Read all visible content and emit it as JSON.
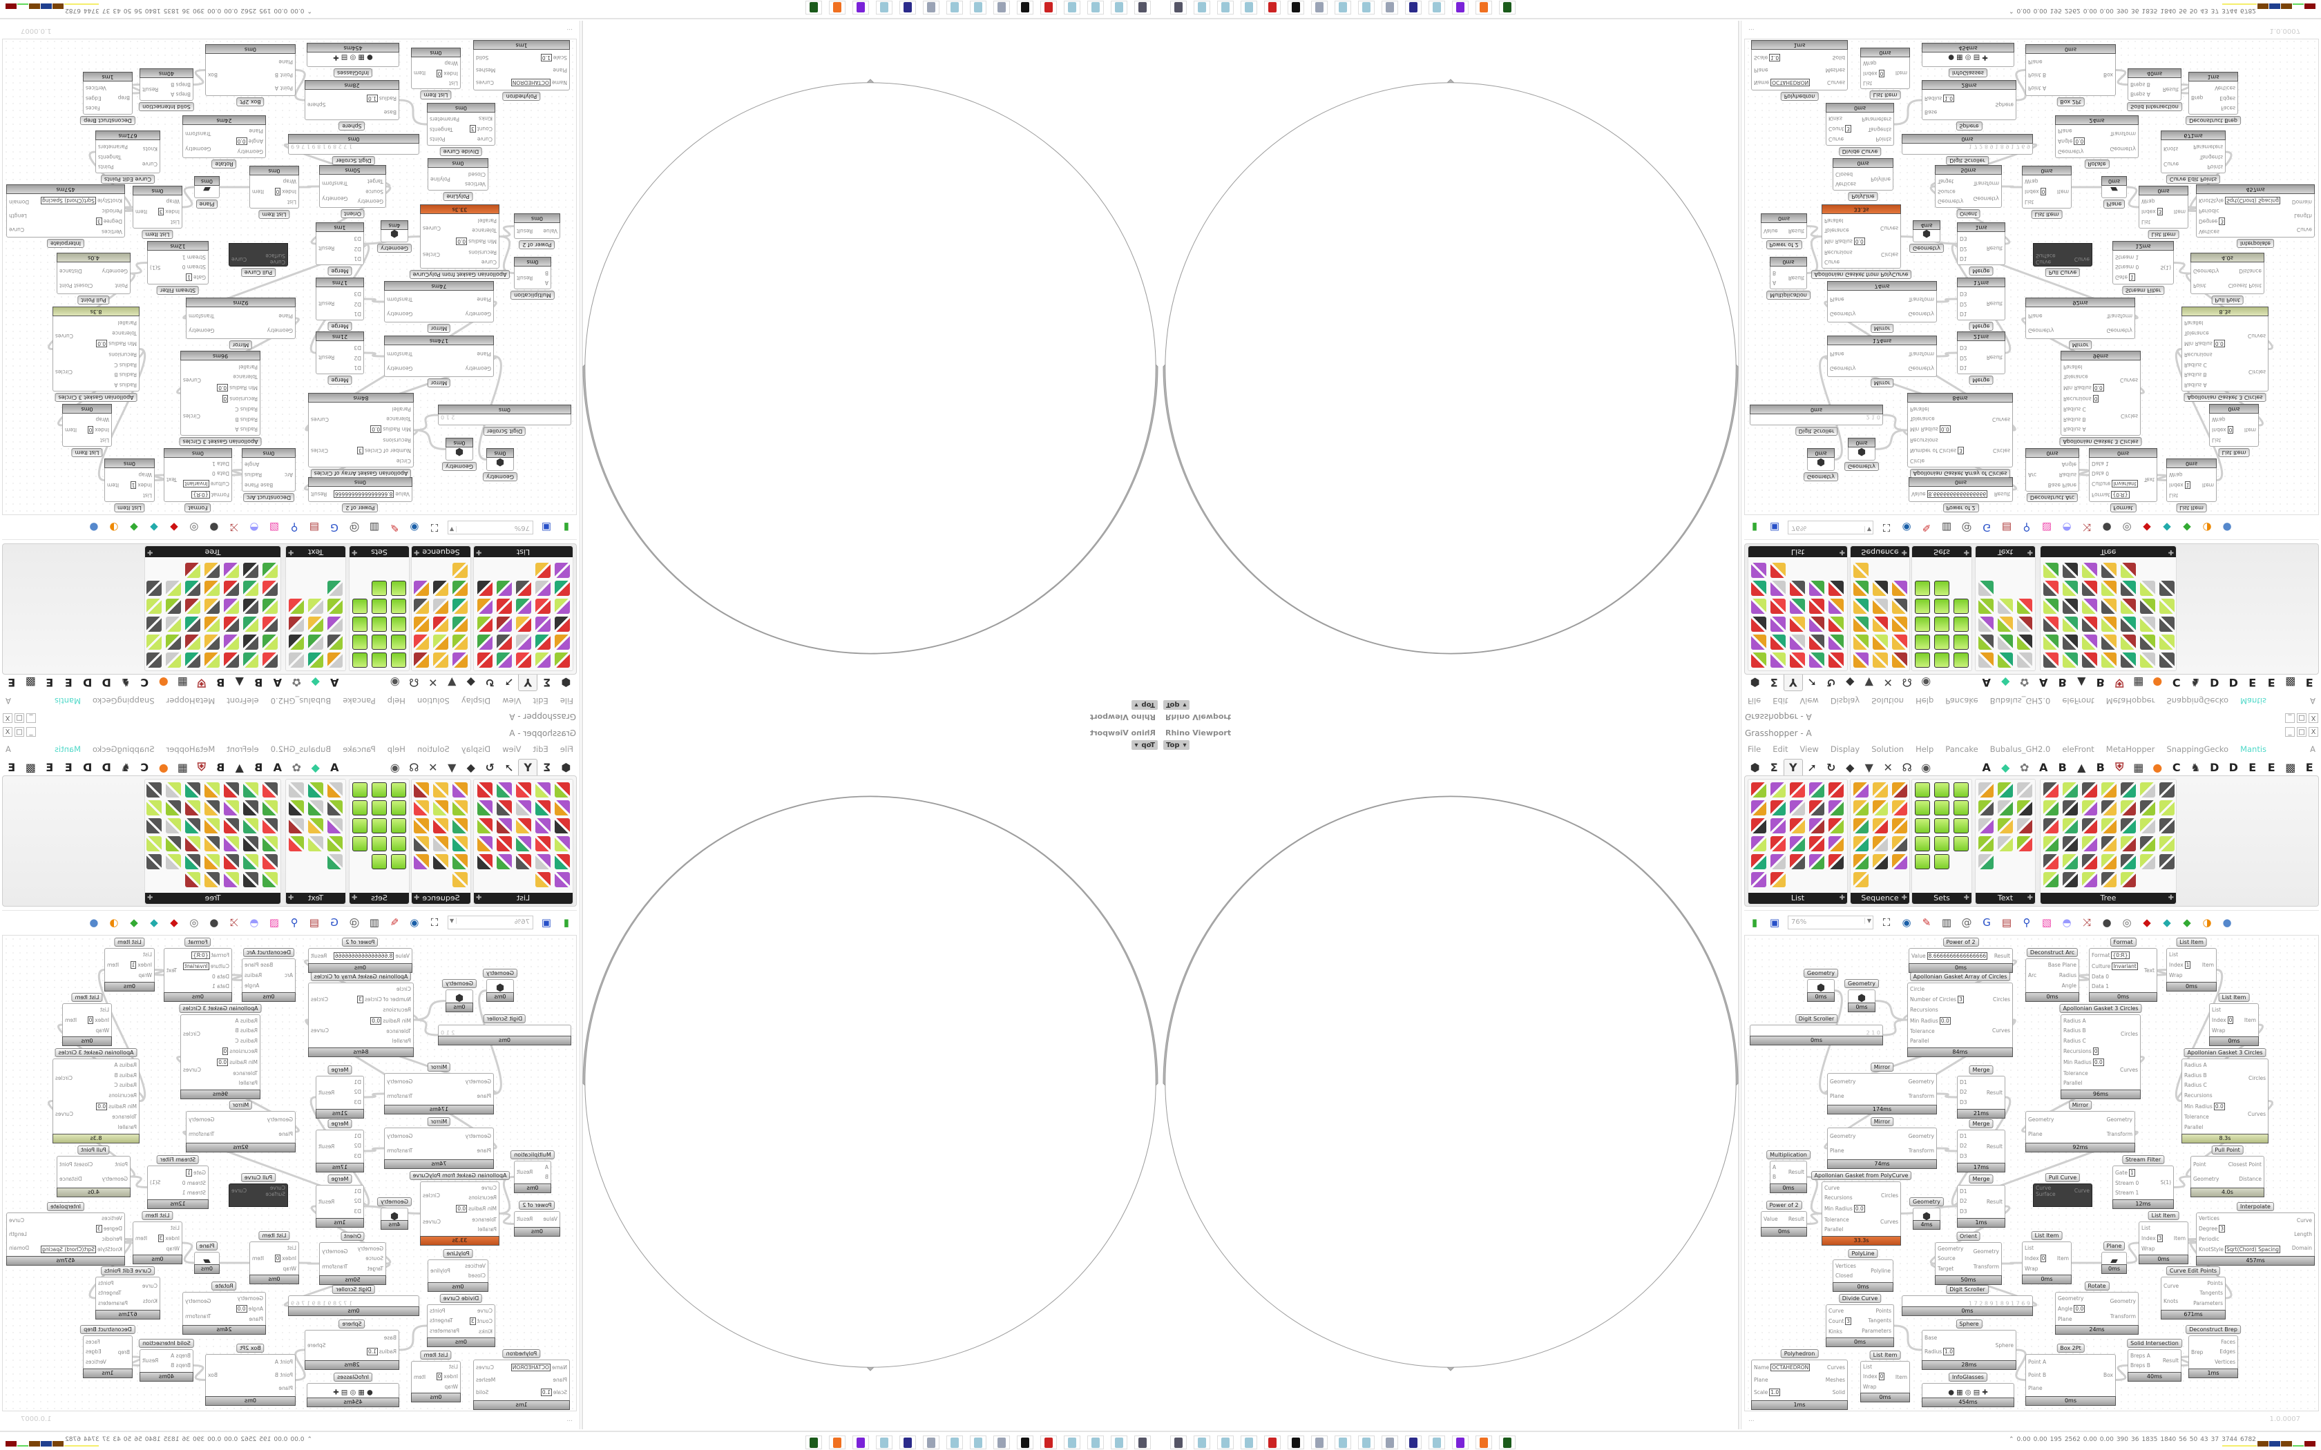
{
  "viewport": {
    "label": "Rhino Viewport",
    "view": "Top",
    "view_dropdown_icon": "chevron-down-icon",
    "stroke_color": "#9a9a9a"
  },
  "window": {
    "title": "Grasshopper - A",
    "controls": [
      "_",
      "□",
      "X"
    ]
  },
  "menu": {
    "items": [
      "File",
      "Edit",
      "View",
      "Display",
      "Solution",
      "Help",
      "Pancake",
      "Bubalus_GH2.0",
      "eleFront",
      "MetaHopper",
      "SnappingGecko",
      "Mantis"
    ],
    "active_plugin": "Mantis",
    "active_color": "#4fd8c8",
    "right_label": "A"
  },
  "tabs": [
    {
      "icon": "params-hexagon-icon"
    },
    {
      "icon": "maths-sigma-icon"
    },
    {
      "icon": "sets-tree-icon",
      "selected": true
    },
    {
      "icon": "vector-arrow-icon"
    },
    {
      "icon": "curve-icon"
    },
    {
      "icon": "surface-icon"
    },
    {
      "icon": "mesh-icon"
    },
    {
      "icon": "intersect-icon"
    },
    {
      "icon": "transform-icon"
    },
    {
      "icon": "display-eye-icon"
    },
    {
      "label": "A"
    },
    {
      "icon": "crystal-icon"
    },
    {
      "icon": "puzzle-icon"
    },
    {
      "label": "A"
    },
    {
      "label": "B"
    },
    {
      "icon": "mountain-icon"
    },
    {
      "label": "B"
    },
    {
      "icon": "shield-icon"
    },
    {
      "icon": "grid-icon"
    },
    {
      "icon": "orange-circle-icon"
    },
    {
      "label": "C"
    },
    {
      "icon": "rooster-icon"
    },
    {
      "label": "D"
    },
    {
      "label": "D"
    },
    {
      "label": "E"
    },
    {
      "label": "E"
    },
    {
      "icon": "checker-icon"
    },
    {
      "label": "E"
    }
  ],
  "ribbon": {
    "groups": [
      {
        "label": "List",
        "count": 27
      },
      {
        "label": "Sequence",
        "count": 16
      },
      {
        "label": "Sets",
        "count": 14
      },
      {
        "label": "Text",
        "count": 13
      },
      {
        "label": "Tree",
        "count": 40
      }
    ]
  },
  "canvas_toolbar": {
    "zoom": "76%",
    "icons": [
      "new-document-icon",
      "save-icon",
      "zoom-extents-icon",
      "preview-eye-icon",
      "sketch-pen-icon",
      "cluster-icon",
      "email-icon",
      "gha-icon",
      "document-icon",
      "search-icon",
      "package-icon",
      "lightbulb-icon",
      "wires-icon",
      "blob-icon",
      "tube-icon",
      "red-gem-icon",
      "teal-shape-icon",
      "green-shape-icon",
      "sphere-icon",
      "blue-sphere-icon"
    ]
  },
  "canvas": {
    "footer": "...",
    "version": "1.0.0007",
    "nodes": [
      {
        "title": "Power of 2",
        "in": [
          [
            "Value",
            "8.6666666666666666"
          ]
        ],
        "out": [
          "Result"
        ],
        "time": "0ms"
      },
      {
        "title": "Geometry",
        "in": [],
        "out": [],
        "time": "0ms",
        "glyph": "⬢"
      },
      {
        "title": "Geometry",
        "in": [],
        "out": [],
        "time": "0ms",
        "glyph": "⬢"
      },
      {
        "title": "Digit Scroller",
        "in": [],
        "out": [],
        "time": "0ms",
        "slider": "2 1 0"
      },
      {
        "title": "Apollonian Gasket Array of Circles",
        "in": [
          "Circle",
          [
            "Number of Circles",
            "3"
          ],
          "Recursions",
          [
            "Min Radius",
            "0.0"
          ],
          "Tolerance",
          "Parallel"
        ],
        "out": [
          "Circles",
          "Curves"
        ],
        "time": "84ms"
      },
      {
        "title": "Deconstruct Arc",
        "in": [
          "Arc"
        ],
        "out": [
          "Base Plane",
          "Radius",
          "Angle"
        ],
        "time": "0ms"
      },
      {
        "title": "Format",
        "in": [
          [
            "Format",
            "{0:R}"
          ],
          [
            "Culture",
            "Invariant"
          ],
          "Data 0",
          "Data 1"
        ],
        "out": [
          "Text"
        ],
        "time": "0ms"
      },
      {
        "title": "List Item",
        "in": [
          "List",
          [
            "Index",
            "1"
          ],
          "Wrap"
        ],
        "out": [
          "Item"
        ],
        "time": "0ms"
      },
      {
        "title": "List Item",
        "in": [
          "List",
          [
            "Index",
            "0"
          ],
          "Wrap"
        ],
        "out": [
          "Item"
        ],
        "time": "0ms"
      },
      {
        "title": "Apollonian Gasket 3 Circles",
        "in": [
          "Radius A",
          "Radius B",
          "Radius C",
          [
            "Recursions",
            "0"
          ],
          [
            "Min Radius",
            "0.0"
          ],
          "Tolerance",
          "Parallel"
        ],
        "out": [
          "Circles",
          "Curves"
        ],
        "time": "96ms"
      },
      {
        "title": "Apollonian Gasket 3 Circles",
        "in": [
          "Radius A",
          "Radius B",
          "Radius C",
          "Recursions",
          [
            "Min Radius",
            "0.0"
          ],
          "Tolerance",
          "Parallel"
        ],
        "out": [
          "Circles",
          "Curves"
        ],
        "time": "8.3s",
        "state": "warn"
      },
      {
        "title": "Mirror",
        "in": [
          "Geometry",
          "Plane"
        ],
        "out": [
          "Geometry",
          "Transform"
        ],
        "time": "174ms"
      },
      {
        "title": "Merge",
        "in": [
          "D1",
          "D2",
          "D3"
        ],
        "out": [
          "Result"
        ],
        "time": "21ms"
      },
      {
        "title": "Mirror",
        "in": [
          "Geometry",
          "Plane"
        ],
        "out": [
          "Geometry",
          "Transform"
        ],
        "time": "74ms"
      },
      {
        "title": "Merge",
        "in": [
          "D1",
          "D2",
          "D3"
        ],
        "out": [
          "Result"
        ],
        "time": "17ms"
      },
      {
        "title": "Mirror",
        "in": [
          "Geometry",
          "Plane"
        ],
        "out": [
          "Geometry",
          "Transform"
        ],
        "time": "92ms"
      },
      {
        "title": "Multiplication",
        "in": [
          "A",
          "B"
        ],
        "out": [
          "Result"
        ],
        "time": "0ms"
      },
      {
        "title": "Pull Point",
        "in": [
          "Point",
          "Geometry"
        ],
        "out": [
          "Closest Point",
          "Distance"
        ],
        "time": "4.0s",
        "state": "gray"
      },
      {
        "title": "Stream Filter",
        "in": [
          [
            "Gate",
            "1"
          ],
          "Stream 0",
          "Stream 1"
        ],
        "out": [
          "S(1)"
        ],
        "time": "12ms"
      },
      {
        "title": "Apollonian Gasket from PolyCurve",
        "in": [
          "Curve",
          "Recursions",
          [
            "Min Radius",
            "0.0"
          ],
          "Tolerance",
          "Parallel"
        ],
        "out": [
          "Circles",
          "Curves"
        ],
        "time": "33.3s",
        "state": "err"
      },
      {
        "title": "Power of 2",
        "in": [
          "Value"
        ],
        "out": [
          "Result"
        ],
        "time": "0ms"
      },
      {
        "title": "Geometry",
        "in": [],
        "out": [],
        "time": "4ms",
        "glyph": "⬢"
      },
      {
        "title": "Merge",
        "in": [
          "D1",
          "D2",
          "D3"
        ],
        "out": [
          "Result"
        ],
        "time": "1ms"
      },
      {
        "title": "Pull Curve",
        "in": [
          "Curve",
          "Surface"
        ],
        "out": [
          "Curve"
        ],
        "time": "",
        "state": "dark"
      },
      {
        "title": "Orient",
        "in": [
          "Geometry",
          "Source",
          "Target"
        ],
        "out": [
          "Geometry",
          "Transform"
        ],
        "time": "50ms"
      },
      {
        "title": "List Item",
        "in": [
          "List",
          [
            "Index",
            "0"
          ],
          "Wrap"
        ],
        "out": [
          "Item"
        ],
        "time": "0ms"
      },
      {
        "title": "Plane",
        "in": [],
        "out": [],
        "time": "0ms",
        "glyph": "▰"
      },
      {
        "title": "List Item",
        "in": [
          "List",
          [
            "Index",
            "3"
          ],
          "Wrap"
        ],
        "out": [
          "Item"
        ],
        "time": "0ms"
      },
      {
        "title": "Interpolate",
        "in": [
          "Vertices",
          [
            "Degree",
            "3"
          ],
          "Periodic",
          [
            "KnotStyle",
            "Sqrt(Chord) Spacing"
          ]
        ],
        "out": [
          "Curve",
          "Length",
          "Domain"
        ],
        "time": "457ms"
      },
      {
        "title": "PolyLine",
        "in": [
          "Vertices",
          "Closed"
        ],
        "out": [
          "Polyline"
        ],
        "time": "0ms"
      },
      {
        "title": "Digit Scroller",
        "in": [],
        "out": [],
        "time": "0ms",
        "slider": "1 7 2 8 9 1 8 9 1 7 6 9"
      },
      {
        "title": "Rotate",
        "in": [
          "Geometry",
          [
            "Angle",
            "0.0"
          ],
          "Plane"
        ],
        "out": [
          "Geometry",
          "Transform"
        ],
        "time": "24ms"
      },
      {
        "title": "Curve Edit Points",
        "in": [
          "Curve",
          "Knots"
        ],
        "out": [
          "Points",
          "Tangents",
          "Parameters"
        ],
        "time": "671ms"
      },
      {
        "title": "Divide Curve",
        "in": [
          "Curve",
          [
            "Count",
            "3"
          ],
          "Kinks"
        ],
        "out": [
          "Points",
          "Tangents",
          "Parameters"
        ],
        "time": "0ms"
      },
      {
        "title": "Sphere",
        "in": [
          "Base",
          [
            "Radius",
            "1.0"
          ]
        ],
        "out": [
          "Sphere"
        ],
        "time": "28ms"
      },
      {
        "title": "Polyhedron",
        "in": [
          [
            "Name",
            "OCTAHEDRON"
          ],
          "Plane",
          [
            "Scale",
            "1.0"
          ]
        ],
        "out": [
          "Curves",
          "Meshes",
          "Solid"
        ],
        "time": "1ms"
      },
      {
        "title": "List Item",
        "in": [
          "List",
          [
            "Index",
            "0"
          ],
          "Wrap"
        ],
        "out": [
          "Item"
        ],
        "time": "0ms"
      },
      {
        "title": "InfoGlasses",
        "in": [],
        "out": [],
        "time": "454ms",
        "glyph": "● ▦ ◎ ▤ ✚"
      },
      {
        "title": "Box 2Pt",
        "in": [
          "Point A",
          "Point B",
          "Plane"
        ],
        "out": [
          "Box"
        ],
        "time": "0ms"
      },
      {
        "title": "Solid Intersection",
        "in": [
          "Breps A",
          "Breps B"
        ],
        "out": [
          "Result"
        ],
        "time": "40ms"
      },
      {
        "title": "Deconstruct Brep",
        "in": [
          "Brep"
        ],
        "out": [
          "Faces",
          "Edges",
          "Vertices"
        ],
        "time": "1ms"
      }
    ]
  },
  "taskbar": {
    "icons": [
      "rhino-icon",
      "notepad-icon",
      "notepad-icon",
      "notepad-icon",
      "red-app-icon",
      "wolf-icon",
      "scroll-icon",
      "notepad-icon",
      "notepad-icon",
      "scroll-icon",
      "floppy-icon",
      "notepad-icon",
      "purple-app-icon",
      "firefox-icon",
      "terminal-icon"
    ]
  },
  "status": {
    "expand_icon": "chevron-up-icon",
    "values": [
      "0.00",
      "0.00",
      "195",
      "2562",
      "0.00",
      "0.00",
      "390",
      "36",
      "1835",
      "1840",
      "56",
      "50",
      "43",
      "37",
      "3744",
      "6782"
    ],
    "indicator_colors": [
      "#f5ee6a",
      "#7a4308",
      "#1f3f8f",
      "#7a4308",
      "#5fd85a",
      "#8a0a0a"
    ]
  }
}
